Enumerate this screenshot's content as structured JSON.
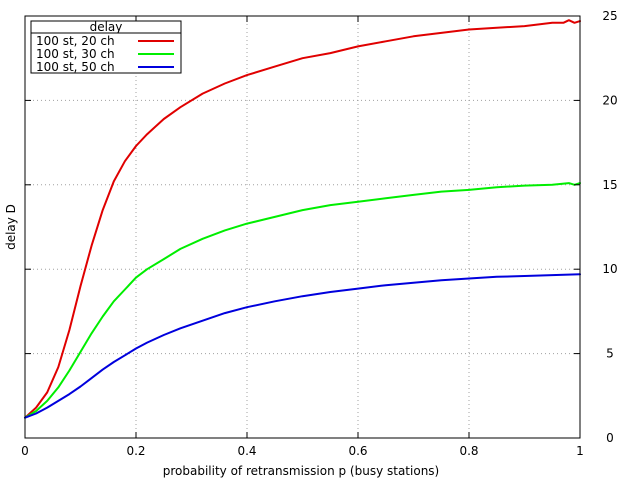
{
  "chart_data": {
    "type": "line",
    "title": "",
    "xlabel": "probability of retransmission p (busy stations)",
    "ylabel": "delay D",
    "xlim": [
      0,
      1
    ],
    "ylim": [
      0,
      25
    ],
    "x_ticks": [
      "0",
      "0.2",
      "0.4",
      "0.6",
      "0.8",
      "1"
    ],
    "y_ticks": [
      "0",
      "5",
      "10",
      "15",
      "20",
      "25"
    ],
    "y_axis_side": "right",
    "grid": true,
    "legend": {
      "title": "delay",
      "position": "top-left"
    },
    "series": [
      {
        "name": "100 st, 20 ch",
        "color": "#e00000",
        "x": [
          0,
          0.02,
          0.04,
          0.06,
          0.08,
          0.1,
          0.12,
          0.14,
          0.16,
          0.18,
          0.2,
          0.22,
          0.25,
          0.28,
          0.32,
          0.36,
          0.4,
          0.45,
          0.5,
          0.55,
          0.6,
          0.65,
          0.7,
          0.75,
          0.8,
          0.85,
          0.9,
          0.95,
          0.97,
          0.98,
          0.99,
          1.0
        ],
        "y": [
          1.2,
          1.8,
          2.7,
          4.2,
          6.4,
          9.0,
          11.4,
          13.5,
          15.2,
          16.4,
          17.3,
          18.0,
          18.9,
          19.6,
          20.4,
          21.0,
          21.5,
          22.0,
          22.5,
          22.8,
          23.2,
          23.5,
          23.8,
          24.0,
          24.2,
          24.3,
          24.4,
          24.6,
          24.6,
          24.75,
          24.6,
          24.7
        ]
      },
      {
        "name": "100 st, 30 ch",
        "color": "#00ee00",
        "x": [
          0,
          0.02,
          0.04,
          0.06,
          0.08,
          0.1,
          0.12,
          0.14,
          0.16,
          0.18,
          0.2,
          0.22,
          0.25,
          0.28,
          0.32,
          0.36,
          0.4,
          0.45,
          0.5,
          0.55,
          0.6,
          0.65,
          0.7,
          0.75,
          0.8,
          0.85,
          0.9,
          0.95,
          0.98,
          0.99,
          1.0
        ],
        "y": [
          1.2,
          1.6,
          2.2,
          3.0,
          4.0,
          5.1,
          6.2,
          7.2,
          8.1,
          8.8,
          9.5,
          10.0,
          10.6,
          11.2,
          11.8,
          12.3,
          12.7,
          13.1,
          13.5,
          13.8,
          14.0,
          14.2,
          14.4,
          14.6,
          14.7,
          14.85,
          14.95,
          15.0,
          15.1,
          15.0,
          15.1
        ]
      },
      {
        "name": "100 st, 50 ch",
        "color": "#0000dd",
        "x": [
          0,
          0.02,
          0.04,
          0.06,
          0.08,
          0.1,
          0.12,
          0.14,
          0.16,
          0.18,
          0.2,
          0.22,
          0.25,
          0.28,
          0.32,
          0.36,
          0.4,
          0.45,
          0.5,
          0.55,
          0.6,
          0.65,
          0.7,
          0.75,
          0.8,
          0.85,
          0.9,
          0.95,
          1.0
        ],
        "y": [
          1.2,
          1.45,
          1.8,
          2.2,
          2.6,
          3.05,
          3.55,
          4.05,
          4.5,
          4.9,
          5.3,
          5.65,
          6.1,
          6.5,
          6.95,
          7.4,
          7.75,
          8.1,
          8.4,
          8.65,
          8.85,
          9.05,
          9.2,
          9.35,
          9.45,
          9.55,
          9.6,
          9.65,
          9.7
        ]
      }
    ]
  }
}
